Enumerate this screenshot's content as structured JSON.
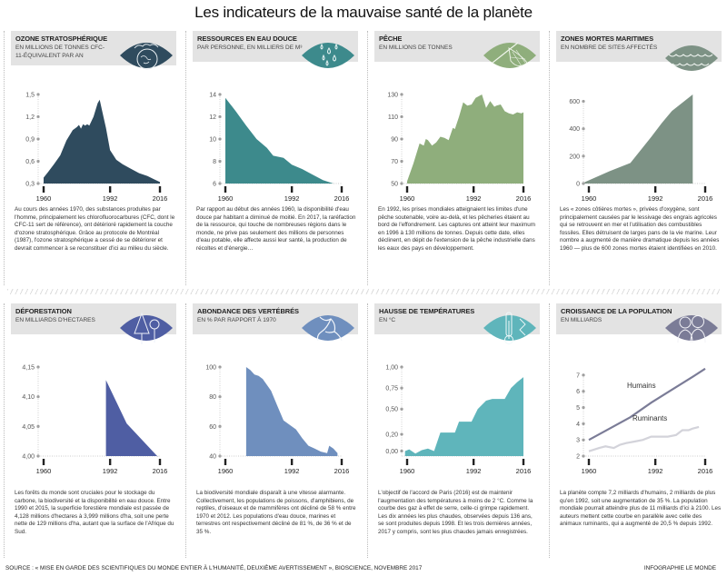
{
  "title": "Les indicateurs de la mauvaise santé de la planète",
  "source": "SOURCE : « MISE EN GARDE DES SCIENTIFIQUES DU MONDE ENTIER À L'HUMANITÉ, DEUXIÈME AVERTISSEMENT », BIOSCIENCE, NOVEMBRE 2017",
  "credit": "INFOGRAPHIE LE MONDE",
  "panels": [
    {
      "title": "OZONE STRATOSPHÉRIQUE",
      "subtitle": "EN MILLIONS DE TONNES CFC-11-ÉQUIVALENT PAR AN",
      "icon": "ozone-earth-icon",
      "color": "#2f4b5e",
      "description": "Au cours des années 1970, des substances produites par l'homme, principalement les chlorofluorocarbures (CFC, dont le CFC-11 sert de référence), ont détérioré rapidement la couche d'ozone stratosphérique. Grâce au protocole de Montréal (1987), l'ozone stratosphérique a cessé de se détériorer et devrait commencer à se reconstituer d'ici au milieu du siècle."
    },
    {
      "title": "RESSOURCES EN EAU DOUCE",
      "subtitle": "PAR PERSONNE, EN MILLIERS DE M³",
      "icon": "water-drops-icon",
      "color": "#3d8a8c",
      "description": "Par rapport au début des années 1960, la disponibilité d'eau douce par habitant a diminué de moitié. En 2017, la raréfaction de la ressource, qui touche de nombreuses régions dans le monde, ne prive pas seulement des millions de personnes d'eau potable, elle affecte aussi leur santé, la production de récoltes et d'énergie…"
    },
    {
      "title": "PÊCHE",
      "subtitle": "EN MILLIONS DE TONNES",
      "icon": "fishing-net-icon",
      "color": "#8fae7c",
      "description": "En 1992, les prises mondiales atteignaient les limites d'une pêche soutenable, voire au-delà, et les pêcheries étaient au bord de l'effondrement. Les captures ont atteint leur maximum en 1996 à 130 millions de tonnes. Depuis cette date, elles déclinent, en dépit de l'extension de la pêche industrielle dans les eaux des pays en développement."
    },
    {
      "title": "ZONES MORTES MARITIMES",
      "subtitle": "EN NOMBRE DE SITES AFFECTÉS",
      "icon": "waves-icon",
      "color": "#7d9285",
      "description": "Les « zones côtières mortes », privées d'oxygène, sont principalement causées par le lessivage des engrais agricoles qui se retrouvent en mer et l'utilisation des combustibles fossiles. Elles détruisent de larges pans de la vie marine. Leur nombre a augmenté de manière dramatique depuis les années 1960 — plus de 600 zones mortes étaient identifiées en 2010."
    },
    {
      "title": "DÉFORESTATION",
      "subtitle": "EN MILLIARDS D'HECTARES",
      "icon": "trees-icon",
      "color": "#4f5ea3",
      "description": "Les forêts du monde sont cruciales pour le stockage du carbone, la biodiversité et la disponibilité en eau douce. Entre 1990 et 2015, la superficie forestière mondiale est passée de 4,128 millions d'hectares à 3,999 millions d'ha, soit une perte nette de 129 millions d'ha, autant que la surface de l'Afrique du Sud."
    },
    {
      "title": "ABONDANCE DES VERTÉBRÉS",
      "subtitle": "EN % PAR RAPPORT À 1970",
      "icon": "frog-icon",
      "color": "#6f8fbe",
      "description": "La biodiversité mondiale disparaît à une vitesse alarmante. Collectivement, les populations de poissons, d'amphibiens, de reptiles, d'oiseaux et de mammifères ont décliné de 58 % entre 1970 et 2012. Les populations d'eau douce, marines et terrestres ont respectivement décliné de 81 %, de 36 % et de 35 %."
    },
    {
      "title": "HAUSSE DE TEMPÉRATURES",
      "subtitle": "EN °C",
      "icon": "thermometer-icon",
      "color": "#5fb5bb",
      "description": "L'objectif de l'accord de Paris (2016) est de maintenir l'augmentation des températures à moins de 2 °C. Comme la courbe des gaz à effet de serre, celle-ci grimpe rapidement. Les dix années les plus chaudes, observées depuis 136 ans, se sont produites depuis 1998. Et les trois dernières années, 2017 y compris, sont les plus chaudes jamais enregistrées."
    },
    {
      "title": "CROISSANCE DE LA POPULATION",
      "subtitle": "EN MILLIARDS",
      "icon": "people-icon",
      "color": "#7b7c97",
      "description": "La planète compte 7,2 milliards d'humains, 2 milliards de plus qu'en 1992, soit une augmentation de 35 %. La population mondiale pourrait atteindre plus de 11 milliards d'ici à 2100. Les auteurs mettent cette courbe en parallèle avec celle des animaux ruminants, qui a augmenté de 20,5 % depuis 1992."
    }
  ],
  "chart_data": [
    {
      "type": "area",
      "title": "OZONE STRATOSPHÉRIQUE",
      "ylabel": "en millions de tonnes CFC-11-équivalent par an",
      "xticks": [
        "1960",
        "1992",
        "2016"
      ],
      "yticks": [
        "0,3",
        "0,6",
        "0,9",
        "1,2",
        "1,5"
      ],
      "xlim": [
        1960,
        2016
      ],
      "ylim": [
        0.3,
        1.5
      ],
      "x": [
        1960,
        1962,
        1965,
        1968,
        1971,
        1974,
        1976,
        1977,
        1978,
        1979,
        1980,
        1981,
        1982,
        1984,
        1986,
        1987,
        1988,
        1990,
        1992,
        1995,
        1998,
        2002,
        2006,
        2010,
        2013,
        2016
      ],
      "values": [
        0.38,
        0.45,
        0.56,
        0.68,
        0.88,
        1.02,
        1.06,
        1.09,
        1.04,
        1.1,
        1.08,
        1.1,
        1.08,
        1.2,
        1.38,
        1.43,
        1.3,
        1.05,
        0.75,
        0.62,
        0.56,
        0.5,
        0.44,
        0.4,
        0.36,
        0.32
      ]
    },
    {
      "type": "area",
      "title": "RESSOURCES EN EAU DOUCE",
      "ylabel": "par personne, en milliers de m³",
      "xticks": [
        "1960",
        "1992",
        "2016"
      ],
      "yticks": [
        "6",
        "8",
        "10",
        "12",
        "14"
      ],
      "xlim": [
        1960,
        2016
      ],
      "ylim": [
        6,
        14
      ],
      "x": [
        1960,
        1965,
        1970,
        1975,
        1980,
        1983,
        1988,
        1992,
        1997,
        2002,
        2007,
        2012
      ],
      "values": [
        13.7,
        12.5,
        11.2,
        10.0,
        9.2,
        8.5,
        8.3,
        7.7,
        7.3,
        6.8,
        6.3,
        6.0
      ]
    },
    {
      "type": "area",
      "title": "PÊCHE",
      "ylabel": "en millions de tonnes",
      "xticks": [
        "1960",
        "1992",
        "2016"
      ],
      "yticks": [
        "50",
        "70",
        "90",
        "110",
        "130"
      ],
      "xlim": [
        1960,
        2016
      ],
      "ylim": [
        50,
        130
      ],
      "x": [
        1960,
        1963,
        1966,
        1968,
        1969,
        1970,
        1972,
        1974,
        1976,
        1978,
        1980,
        1982,
        1983,
        1985,
        1987,
        1989,
        1991,
        1993,
        1995,
        1996,
        1998,
        2000,
        2002,
        2003,
        2005,
        2007,
        2009,
        2011,
        2013,
        2015,
        2016
      ],
      "values": [
        52,
        68,
        86,
        84,
        90,
        89,
        84,
        87,
        92,
        91,
        89,
        100,
        99,
        110,
        123,
        120,
        121,
        127,
        129,
        130,
        118,
        124,
        119,
        120,
        121,
        115,
        113,
        112,
        114,
        113,
        114
      ]
    },
    {
      "type": "area",
      "title": "ZONES MORTES MARITIMES",
      "ylabel": "en nombre de sites affectés",
      "xticks": [
        "1960",
        "1992",
        "2016"
      ],
      "yticks": [
        "0",
        "200",
        "400",
        "600"
      ],
      "xlim": [
        1960,
        2016
      ],
      "ylim": [
        0,
        650
      ],
      "x": [
        1958,
        1970,
        1980,
        1990,
        1995,
        2000,
        2010
      ],
      "values": [
        10,
        90,
        150,
        340,
        440,
        530,
        650
      ]
    },
    {
      "type": "area",
      "title": "DÉFORESTATION",
      "ylabel": "en milliards d'hectares",
      "xticks": [
        "1960",
        "1992",
        "2016"
      ],
      "yticks": [
        "4,00",
        "4,05",
        "4,10",
        "4,15"
      ],
      "xlim": [
        1960,
        2016
      ],
      "ylim": [
        4.0,
        4.15
      ],
      "x": [
        1990,
        2000,
        2015
      ],
      "values": [
        4.128,
        4.055,
        3.999
      ]
    },
    {
      "type": "area",
      "title": "ABONDANCE DES VERTÉBRÉS",
      "ylabel": "en % par rapport à 1970",
      "xticks": [
        "1960",
        "1992",
        "2016"
      ],
      "yticks": [
        "40",
        "60",
        "80",
        "100"
      ],
      "xlim": [
        1960,
        2016
      ],
      "ylim": [
        40,
        100
      ],
      "x": [
        1970,
        1972,
        1974,
        1976,
        1978,
        1980,
        1982,
        1985,
        1988,
        1991,
        1994,
        1997,
        2000,
        2003,
        2006,
        2009,
        2010,
        2012,
        2014
      ],
      "values": [
        100,
        98,
        95,
        94,
        92,
        88,
        84,
        74,
        64,
        61,
        58,
        52,
        47,
        45,
        43,
        42,
        47,
        45,
        42
      ]
    },
    {
      "type": "area",
      "title": "HAUSSE DE TEMPÉRATURES",
      "ylabel": "en °C",
      "xticks": [
        "1960",
        "1992",
        "2016"
      ],
      "yticks": [
        "0,00",
        "0,20",
        "0,50",
        "0,75",
        "1,00"
      ],
      "xlim": [
        1960,
        2016
      ],
      "ylim": [
        -0.06,
        1.0
      ],
      "x": [
        1959,
        1961,
        1964,
        1967,
        1970,
        1973,
        1976,
        1979,
        1983,
        1985,
        1988,
        1991,
        1994,
        1998,
        2001,
        2004,
        2007,
        2010,
        2013,
        2016
      ],
      "values": [
        0.0,
        0.02,
        -0.03,
        0.01,
        0.03,
        0.0,
        0.22,
        0.22,
        0.22,
        0.35,
        0.35,
        0.35,
        0.5,
        0.6,
        0.62,
        0.62,
        0.62,
        0.75,
        0.82,
        0.88
      ]
    },
    {
      "type": "line",
      "title": "CROISSANCE DE LA POPULATION",
      "ylabel": "en milliards",
      "xticks": [
        "1960",
        "1992",
        "2016"
      ],
      "yticks": [
        "2",
        "3",
        "4",
        "5",
        "6",
        "7"
      ],
      "xlim": [
        1960,
        2016
      ],
      "ylim": [
        2,
        7.5
      ],
      "x_humains": [
        1960,
        1970,
        1980,
        1990,
        2000,
        2010,
        2016
      ],
      "series": [
        {
          "name": "Humains",
          "x": [
            1960,
            1970,
            1980,
            1990,
            2000,
            2010,
            2016
          ],
          "values": [
            3.0,
            3.7,
            4.4,
            5.3,
            6.1,
            6.9,
            7.4
          ]
        },
        {
          "name": "Ruminants",
          "x": [
            1960,
            1965,
            1968,
            1972,
            1975,
            1978,
            1982,
            1986,
            1990,
            1994,
            1998,
            2002,
            2005,
            2008,
            2010,
            2013
          ],
          "values": [
            2.3,
            2.5,
            2.6,
            2.5,
            2.7,
            2.8,
            2.9,
            3.0,
            3.2,
            3.2,
            3.2,
            3.3,
            3.6,
            3.6,
            3.7,
            3.8
          ]
        }
      ]
    }
  ]
}
